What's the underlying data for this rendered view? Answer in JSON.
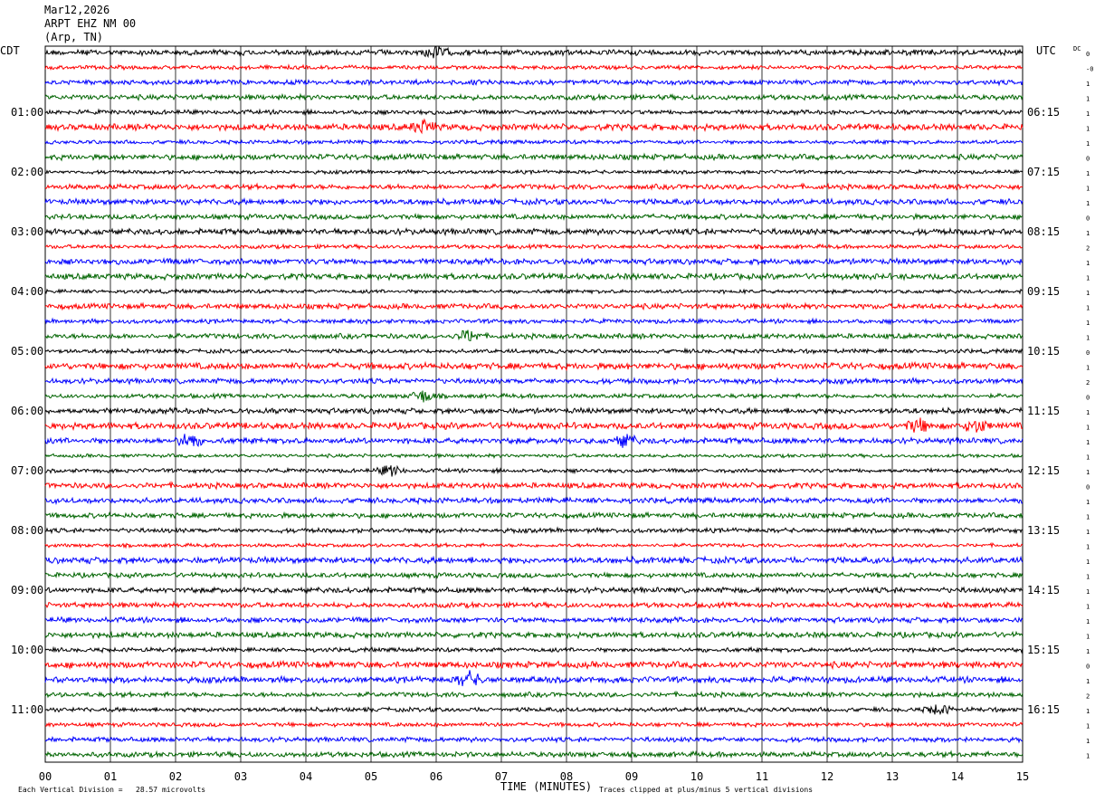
{
  "header": {
    "date": "Mar12,2026",
    "station": "ARPT EHZ NM 00",
    "location": "(Arp, TN)"
  },
  "left_zone": "CDT",
  "right_zone": "UTC",
  "dc_label": "DC",
  "chart_data": {
    "type": "line",
    "title": "",
    "xlabel": "TIME (MINUTES)",
    "xlim": [
      0,
      15
    ],
    "x_ticks": [
      "00",
      "01",
      "02",
      "03",
      "04",
      "05",
      "06",
      "07",
      "08",
      "09",
      "10",
      "11",
      "12",
      "13",
      "14",
      "15"
    ],
    "rows": 48,
    "row_colors": [
      "#000000",
      "#ff0000",
      "#0000ff",
      "#006400"
    ],
    "left_hour_labels": [
      "01:00",
      "02:00",
      "03:00",
      "04:00",
      "05:00",
      "06:00",
      "07:00",
      "08:00",
      "09:00",
      "10:00",
      "11:00"
    ],
    "right_hour_labels": [
      "06:15",
      "07:15",
      "08:15",
      "09:15",
      "10:15",
      "11:15",
      "12:15",
      "13:15",
      "14:15",
      "15:15",
      "16:15"
    ],
    "dc_offsets": [
      "0",
      "-0",
      "1",
      "1",
      "1",
      "1",
      "1",
      "0",
      "1",
      "1",
      "1",
      "0",
      "1",
      "2",
      "1",
      "1",
      "1",
      "1",
      "1",
      "1",
      "0",
      "1",
      "2",
      "0",
      "1",
      "1",
      "1",
      "1",
      "1",
      "0",
      "1",
      "1",
      "1",
      "1",
      "1",
      "1",
      "1",
      "1",
      "1",
      "1",
      "1",
      "0",
      "1",
      "2",
      "1",
      "1",
      "1",
      "1"
    ],
    "bursts": [
      {
        "row": 0,
        "minute": 6.0,
        "amp": 2.0
      },
      {
        "row": 5,
        "minute": 5.8,
        "amp": 2.2
      },
      {
        "row": 19,
        "minute": 6.5,
        "amp": 2.0
      },
      {
        "row": 23,
        "minute": 5.8,
        "amp": 2.0
      },
      {
        "row": 25,
        "minute": 13.4,
        "amp": 2.2
      },
      {
        "row": 25,
        "minute": 14.3,
        "amp": 2.0
      },
      {
        "row": 26,
        "minute": 2.2,
        "amp": 2.4
      },
      {
        "row": 26,
        "minute": 8.9,
        "amp": 2.0
      },
      {
        "row": 28,
        "minute": 5.3,
        "amp": 1.8
      },
      {
        "row": 42,
        "minute": 6.5,
        "amp": 2.6
      },
      {
        "row": 44,
        "minute": 13.7,
        "amp": 1.8
      }
    ]
  },
  "footer": {
    "scale": "Each Vertical Division =   28.57 microvolts",
    "clip": "Traces clipped at plus/minus 5 vertical divisions"
  }
}
